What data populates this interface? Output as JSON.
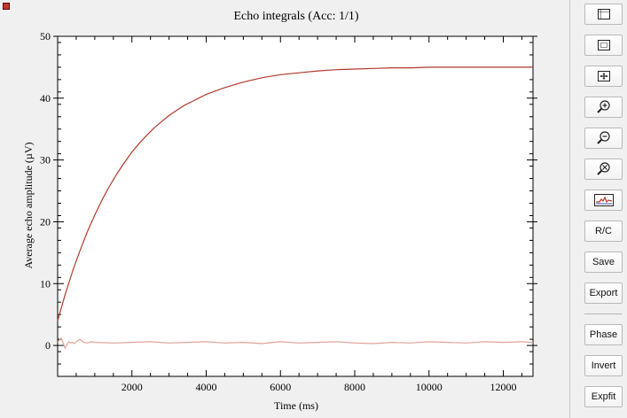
{
  "chart_data": {
    "type": "line",
    "title": "Echo integrals (Acc: 1/1)",
    "xlabel": "Time (ms)",
    "ylabel": "Average echo amplitude (µV)",
    "xlim": [
      0,
      12800
    ],
    "ylim": [
      -5,
      50
    ],
    "x_ticks": [
      2000,
      4000,
      6000,
      8000,
      10000,
      12000
    ],
    "y_ticks": [
      0,
      10,
      20,
      30,
      40,
      50
    ],
    "grid": false,
    "series": [
      {
        "color": "#b23a2e",
        "x": [
          0,
          200,
          400,
          600,
          800,
          1000,
          1200,
          1400,
          1600,
          1800,
          2000,
          2200,
          2400,
          2600,
          2800,
          3000,
          3200,
          3400,
          3600,
          3800,
          4000,
          4500,
          5000,
          5500,
          6000,
          6500,
          7000,
          7500,
          8000,
          8500,
          9000,
          9500,
          10000,
          10500,
          11000,
          11500,
          12000,
          12500,
          12800
        ],
        "y": [
          4.0,
          8.2,
          12.0,
          15.3,
          18.4,
          21.1,
          23.6,
          25.8,
          27.8,
          29.6,
          31.3,
          32.7,
          34.0,
          35.2,
          36.2,
          37.2,
          38.0,
          38.8,
          39.4,
          40.0,
          40.6,
          41.7,
          42.6,
          43.3,
          43.8,
          44.1,
          44.4,
          44.6,
          44.7,
          44.8,
          44.9,
          44.9,
          45.0,
          45.0,
          45.0,
          45.0,
          45.0,
          45.0,
          45.0
        ]
      },
      {
        "color": "#e0a49a",
        "x": [
          0,
          50,
          100,
          150,
          200,
          250,
          300,
          350,
          400,
          450,
          500,
          550,
          600,
          700,
          800,
          900,
          1000,
          1500,
          2000,
          2500,
          3000,
          3500,
          4000,
          4500,
          5000,
          5500,
          6000,
          6500,
          7000,
          7500,
          8000,
          8500,
          9000,
          9500,
          10000,
          10500,
          11000,
          11500,
          12000,
          12500,
          12800
        ],
        "y": [
          0.5,
          0.9,
          1.2,
          0.3,
          -0.4,
          0.1,
          0.6,
          0.4,
          0.5,
          0.3,
          0.6,
          0.8,
          1.0,
          0.5,
          0.4,
          0.6,
          0.5,
          0.4,
          0.5,
          0.6,
          0.4,
          0.5,
          0.6,
          0.4,
          0.5,
          0.3,
          0.6,
          0.4,
          0.5,
          0.6,
          0.4,
          0.3,
          0.5,
          0.4,
          0.6,
          0.5,
          0.4,
          0.6,
          0.5,
          0.6,
          0.5
        ]
      }
    ]
  },
  "toolbar": {
    "rc_label": "R/C",
    "save_label": "Save",
    "export_label": "Export",
    "phase_label": "Phase",
    "invert_label": "Invert",
    "expfit_label": "Expfit"
  }
}
